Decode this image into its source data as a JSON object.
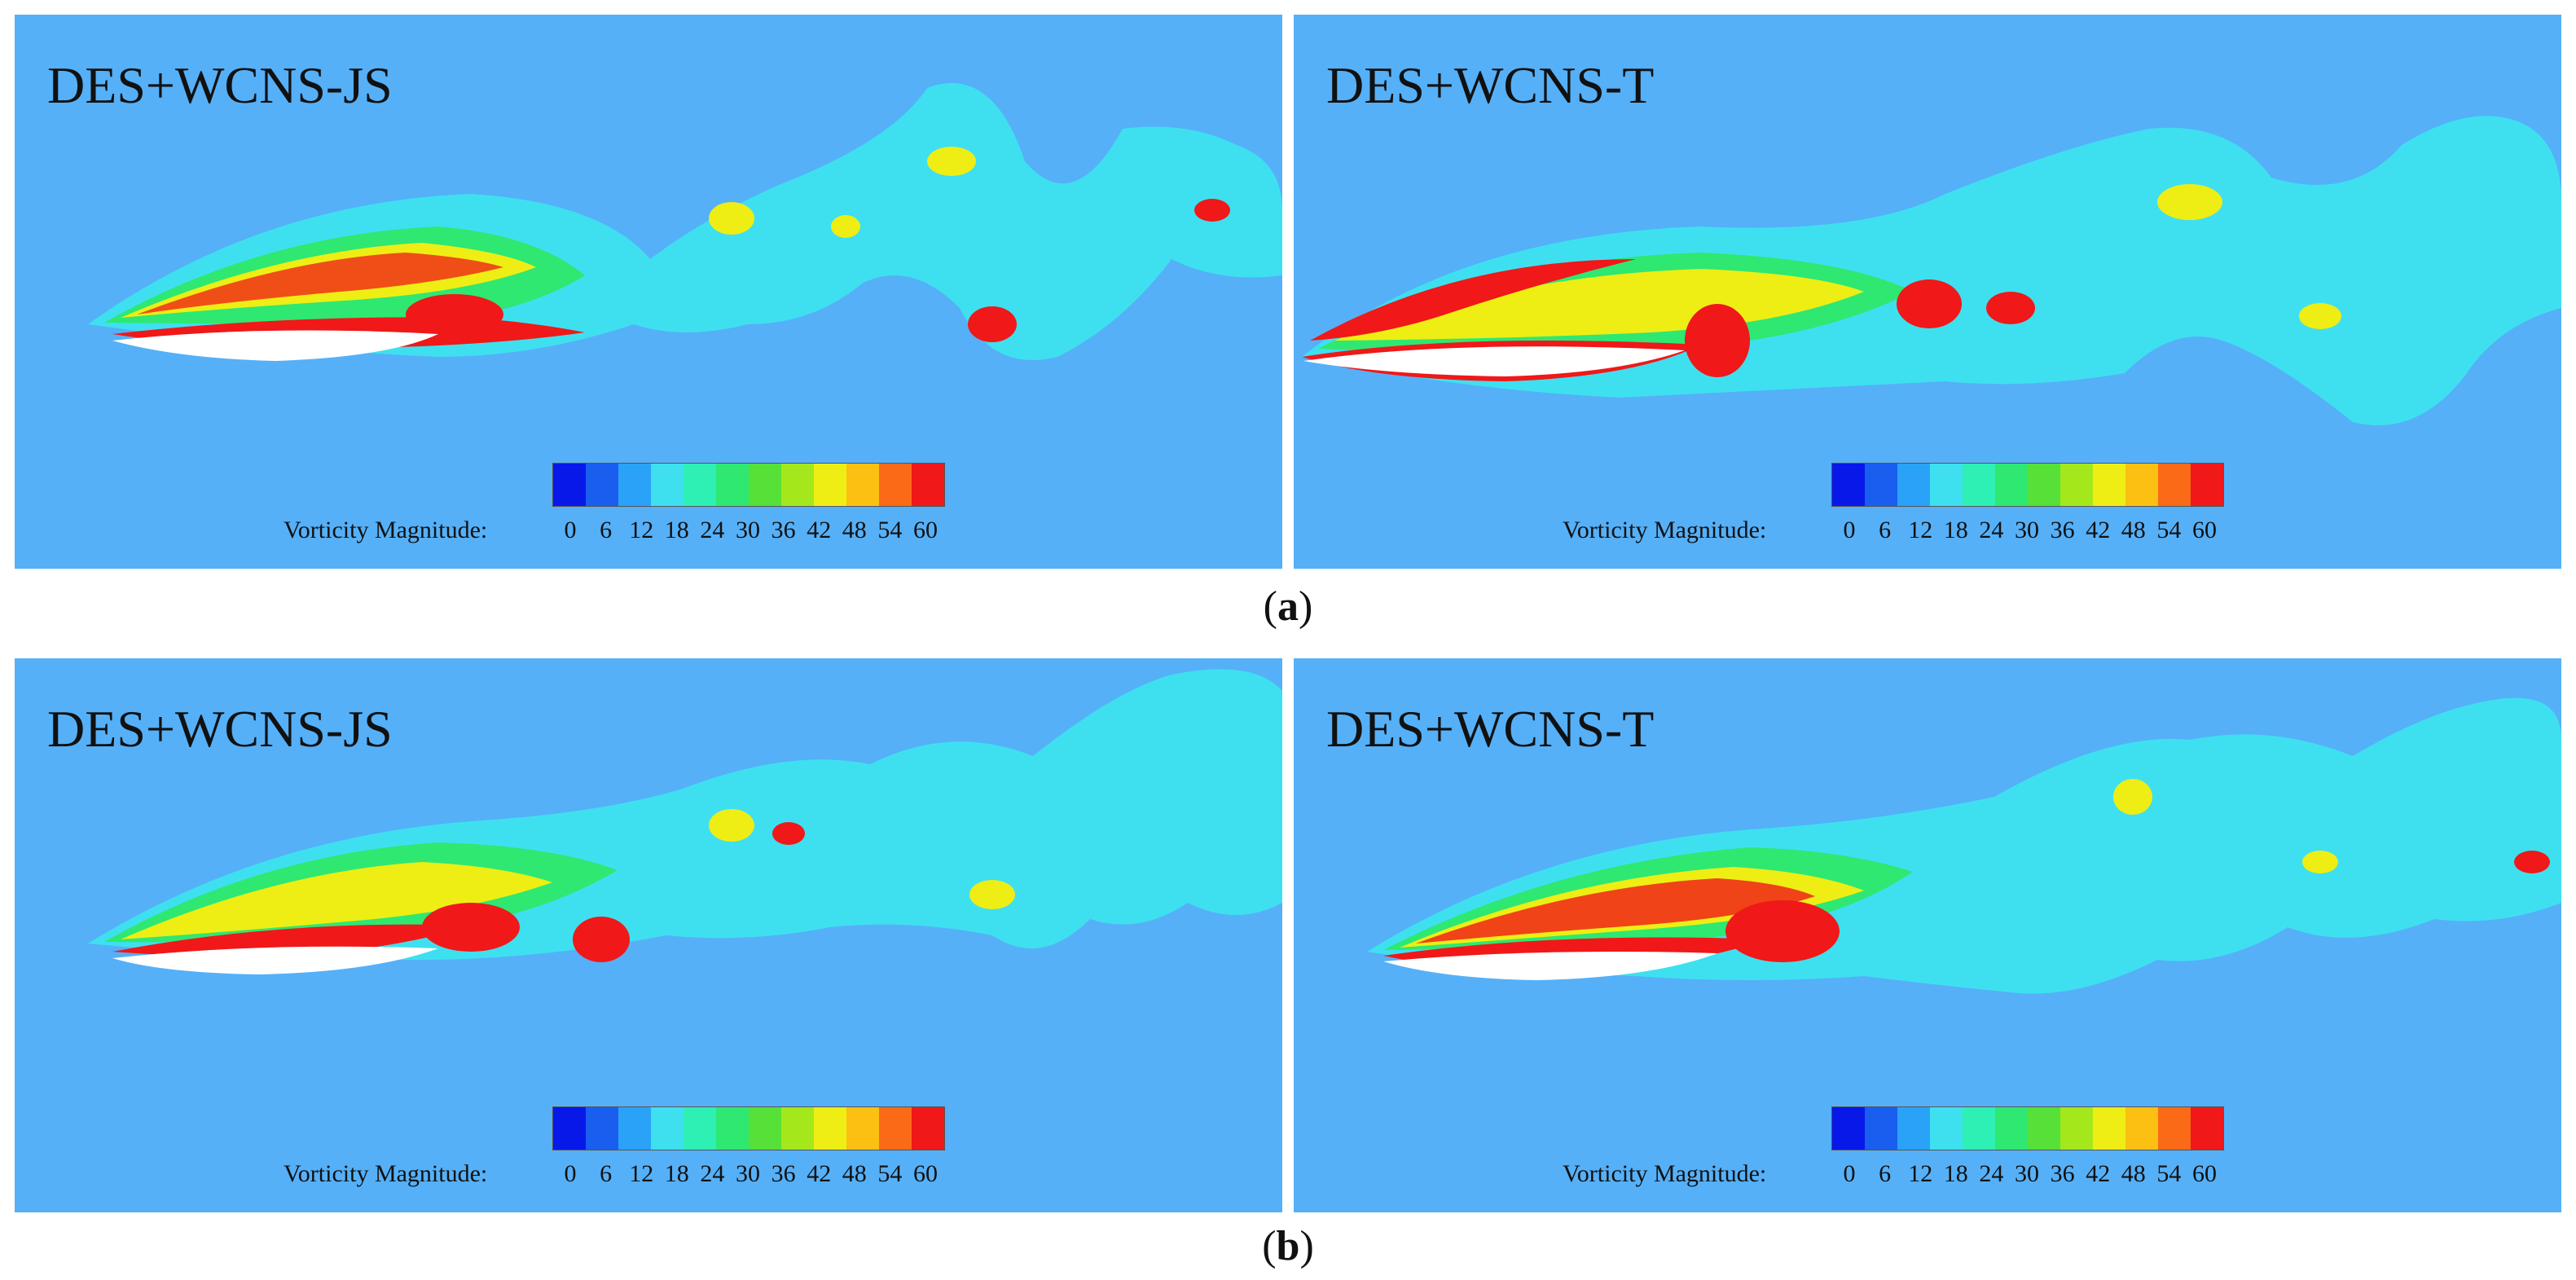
{
  "figure": {
    "colorbar": {
      "label": "Vorticity Magnitude:",
      "ticks": [
        "0",
        "6",
        "12",
        "18",
        "24",
        "30",
        "36",
        "42",
        "48",
        "54",
        "60"
      ],
      "colors": [
        "#0818e8",
        "#1a5ef0",
        "#2aa2f8",
        "#3ee0f0",
        "#2ef0b4",
        "#2ee872",
        "#56e038",
        "#a4e81c",
        "#eeee14",
        "#fbc012",
        "#fb6a16",
        "#f01818"
      ]
    },
    "rows": [
      {
        "caption": "(a)",
        "caption_letter": "a",
        "panels": [
          {
            "title": "DES+WCNS-JS"
          },
          {
            "title": "DES+WCNS-T"
          }
        ]
      },
      {
        "caption": "(b)",
        "caption_letter": "b",
        "panels": [
          {
            "title": "DES+WCNS-JS"
          },
          {
            "title": "DES+WCNS-T"
          }
        ]
      }
    ],
    "colors": {
      "background": "#55b0f8",
      "airfoil": "#ffffff"
    }
  }
}
